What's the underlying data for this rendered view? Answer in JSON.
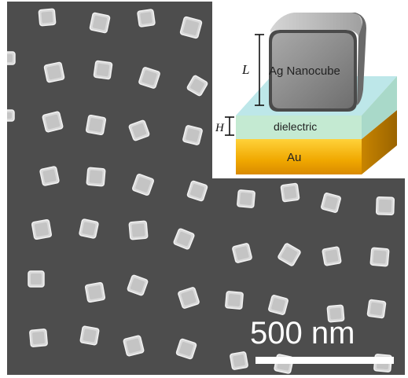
{
  "micrograph": {
    "scale_bar_label": "500 nm"
  },
  "inset": {
    "cube_label": "Ag Nanocube",
    "dielectric_label": "dielectric",
    "substrate_label": "Au",
    "cube_dimension_symbol": "L",
    "spacer_dimension_symbol": "H"
  }
}
